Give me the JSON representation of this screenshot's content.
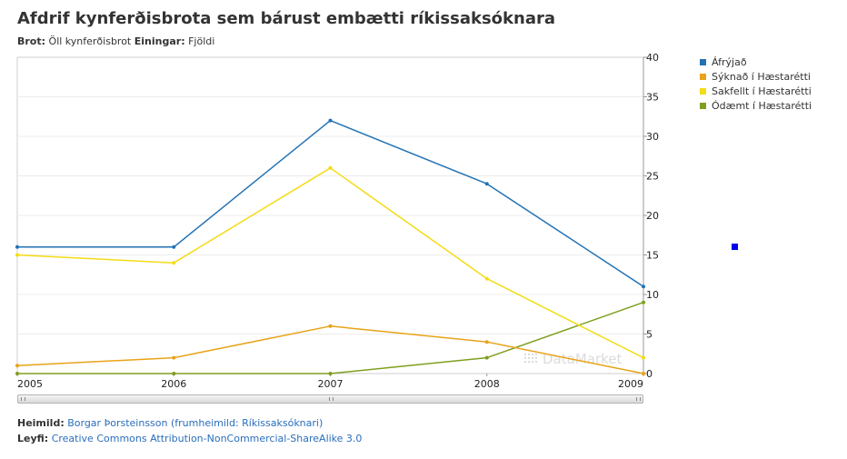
{
  "header": {
    "title": "Afdrif kynferðisbrota sem bárust embætti ríkissaksóknara",
    "brot_label": "Brot:",
    "brot_value": "Öll kynferðisbrot",
    "einingar_label": "Einingar:",
    "einingar_value": "Fjöldi"
  },
  "chart_data": {
    "type": "line",
    "title": "Afdrif kynferðisbrota sem bárust embætti ríkissaksóknara",
    "xlabel": "",
    "ylabel": "",
    "x": [
      "2005",
      "2006",
      "2007",
      "2008",
      "2009"
    ],
    "ylim": [
      0,
      40
    ],
    "yticks": [
      "0",
      "5",
      "10",
      "15",
      "20",
      "25",
      "30",
      "35",
      "40"
    ],
    "y_axis_side": "right",
    "grid": true,
    "legend_position": "right",
    "series": [
      {
        "name": "Áfrýjað",
        "color": "#2272b4",
        "values": [
          16,
          16,
          32,
          24,
          11
        ]
      },
      {
        "name": "Sýknað í Hæstarétti",
        "color": "#e8a317",
        "values": [
          1,
          2,
          6,
          4,
          0
        ]
      },
      {
        "name": "Sakfellt í Hæstarétti",
        "color": "#f4dc16",
        "values": [
          15,
          14,
          26,
          12,
          2
        ]
      },
      {
        "name": "Ódæmt í Hæstarétti",
        "color": "#7e9f1e",
        "values": [
          0,
          0,
          0,
          2,
          9
        ]
      }
    ]
  },
  "watermark": "DataMarket",
  "footer": {
    "source_label": "Heimild:",
    "source_value": "Borgar Þorsteinsson (frumheimild: Ríkissaksóknari)",
    "license_label": "Leyfi:",
    "license_value": "Creative Commons Attribution-NonCommercial-ShareAlike 3.0"
  }
}
